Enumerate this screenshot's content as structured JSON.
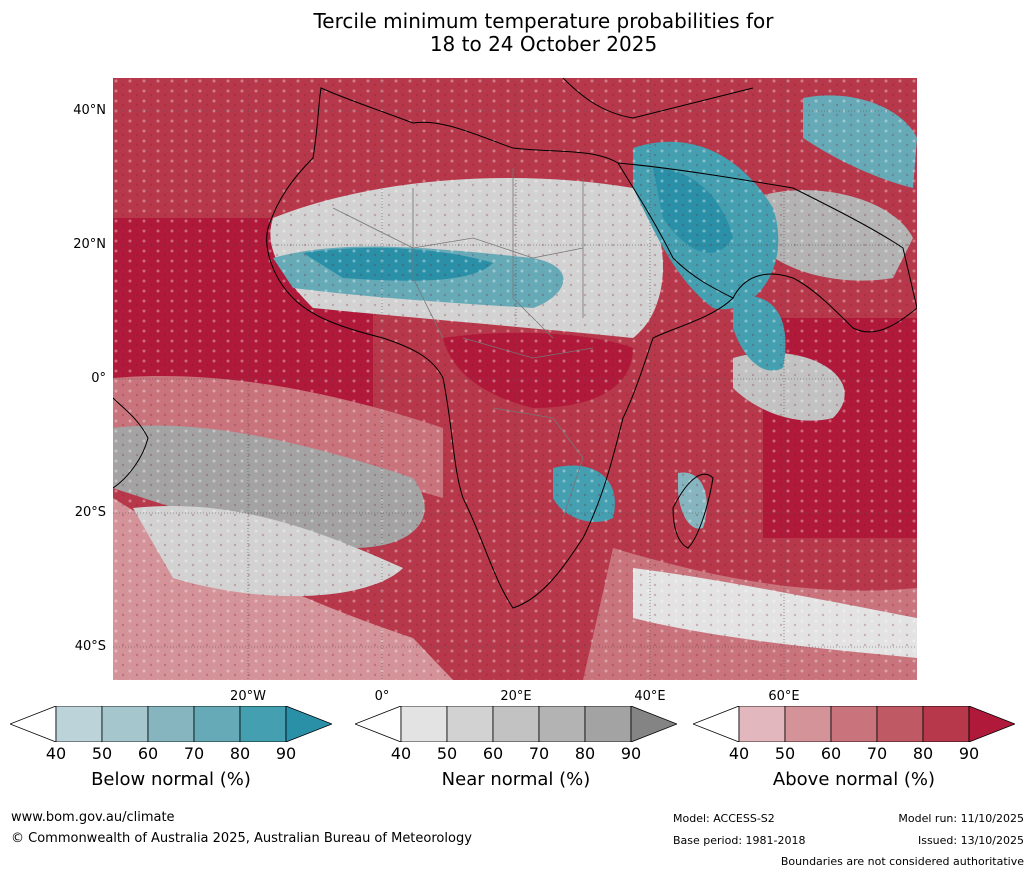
{
  "title": {
    "line1": "Tercile minimum temperature probabilities for",
    "line2": "18 to 24 October 2025"
  },
  "map": {
    "latitude_labels": [
      "40°N",
      "20°N",
      "0°",
      "20°S",
      "40°S"
    ],
    "longitude_labels": [
      "20°W",
      "0°",
      "20°E",
      "40°E",
      "60°E"
    ]
  },
  "legends": [
    {
      "label": "Below normal (%)",
      "ticks": [
        "40",
        "50",
        "60",
        "70",
        "80",
        "90"
      ],
      "colors": [
        "#ffffff",
        "#bcd3da",
        "#a5c6cd",
        "#86b5c0",
        "#66aab7",
        "#449fb0",
        "#2a90a8"
      ]
    },
    {
      "label": "Near normal (%)",
      "ticks": [
        "40",
        "50",
        "60",
        "70",
        "80",
        "90"
      ],
      "colors": [
        "#ffffff",
        "#e3e3e3",
        "#d2d2d2",
        "#c2c2c2",
        "#b3b3b3",
        "#a3a3a3",
        "#848484"
      ]
    },
    {
      "label": "Above normal (%)",
      "ticks": [
        "40",
        "50",
        "60",
        "70",
        "80",
        "90"
      ],
      "colors": [
        "#ffffff",
        "#e2b7bd",
        "#d49299",
        "#c9737c",
        "#bf5a64",
        "#b7384a",
        "#b0193a"
      ]
    }
  ],
  "footer": {
    "website": "www.bom.gov.au/climate",
    "copyright": "© Commonwealth of Australia 2025, Australian Bureau of Meteorology",
    "model": "Model: ACCESS-S2",
    "base_period": "Base period: 1981-2018",
    "model_run": "Model run: 11/10/2025",
    "issued": "Issued: 13/10/2025",
    "disclaimer": "Boundaries are not considered authoritative"
  }
}
